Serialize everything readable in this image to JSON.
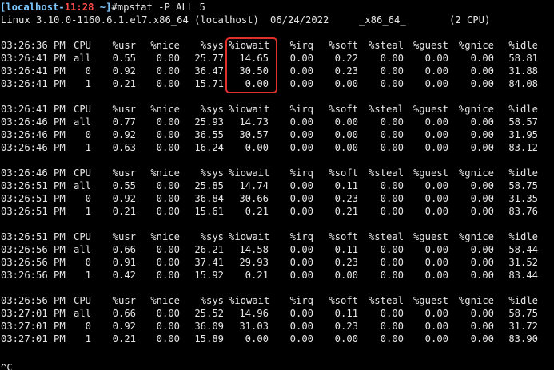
{
  "prompt": {
    "open_bracket": "[",
    "host": "localhost-",
    "time": "11:28",
    "path_sep": " ~]",
    "command": "#mpstat -P ALL 5"
  },
  "system_info": {
    "kernel": "Linux 3.10.0-1160.6.1.el7.x86_64 (localhost)",
    "date": "06/24/2022",
    "arch": "_x86_64_",
    "cpus": "(2 CPU)"
  },
  "header": {
    "cpu": "CPU",
    "usr": "%usr",
    "nice": "%nice",
    "sys": "%sys",
    "iowait": "%iowait",
    "irq": "%irq",
    "soft": "%soft",
    "steal": "%steal",
    "guest": "%guest",
    "gnice": "%gnice",
    "idle": "%idle"
  },
  "blocks": [
    {
      "header_time": "03:26:36 PM",
      "rows": [
        {
          "time": "03:26:41 PM",
          "cpu": "all",
          "usr": "0.55",
          "nice": "0.00",
          "sys": "25.77",
          "iowait": "14.65",
          "irq": "0.00",
          "soft": "0.22",
          "steal": "0.00",
          "guest": "0.00",
          "gnice": "0.00",
          "idle": "58.81"
        },
        {
          "time": "03:26:41 PM",
          "cpu": "0",
          "usr": "0.92",
          "nice": "0.00",
          "sys": "36.47",
          "iowait": "30.50",
          "irq": "0.00",
          "soft": "0.23",
          "steal": "0.00",
          "guest": "0.00",
          "gnice": "0.00",
          "idle": "31.88"
        },
        {
          "time": "03:26:41 PM",
          "cpu": "1",
          "usr": "0.21",
          "nice": "0.00",
          "sys": "15.71",
          "iowait": "0.00",
          "irq": "0.00",
          "soft": "0.00",
          "steal": "0.00",
          "guest": "0.00",
          "gnice": "0.00",
          "idle": "84.08"
        }
      ]
    },
    {
      "header_time": "03:26:41 PM",
      "rows": [
        {
          "time": "03:26:46 PM",
          "cpu": "all",
          "usr": "0.77",
          "nice": "0.00",
          "sys": "25.93",
          "iowait": "14.73",
          "irq": "0.00",
          "soft": "0.00",
          "steal": "0.00",
          "guest": "0.00",
          "gnice": "0.00",
          "idle": "58.57"
        },
        {
          "time": "03:26:46 PM",
          "cpu": "0",
          "usr": "0.92",
          "nice": "0.00",
          "sys": "36.55",
          "iowait": "30.57",
          "irq": "0.00",
          "soft": "0.00",
          "steal": "0.00",
          "guest": "0.00",
          "gnice": "0.00",
          "idle": "31.95"
        },
        {
          "time": "03:26:46 PM",
          "cpu": "1",
          "usr": "0.63",
          "nice": "0.00",
          "sys": "16.24",
          "iowait": "0.00",
          "irq": "0.00",
          "soft": "0.00",
          "steal": "0.00",
          "guest": "0.00",
          "gnice": "0.00",
          "idle": "83.12"
        }
      ]
    },
    {
      "header_time": "03:26:46 PM",
      "rows": [
        {
          "time": "03:26:51 PM",
          "cpu": "all",
          "usr": "0.55",
          "nice": "0.00",
          "sys": "25.85",
          "iowait": "14.74",
          "irq": "0.00",
          "soft": "0.11",
          "steal": "0.00",
          "guest": "0.00",
          "gnice": "0.00",
          "idle": "58.75"
        },
        {
          "time": "03:26:51 PM",
          "cpu": "0",
          "usr": "0.92",
          "nice": "0.00",
          "sys": "36.84",
          "iowait": "30.66",
          "irq": "0.00",
          "soft": "0.23",
          "steal": "0.00",
          "guest": "0.00",
          "gnice": "0.00",
          "idle": "31.35"
        },
        {
          "time": "03:26:51 PM",
          "cpu": "1",
          "usr": "0.21",
          "nice": "0.00",
          "sys": "15.61",
          "iowait": "0.21",
          "irq": "0.00",
          "soft": "0.21",
          "steal": "0.00",
          "guest": "0.00",
          "gnice": "0.00",
          "idle": "83.76"
        }
      ]
    },
    {
      "header_time": "03:26:51 PM",
      "rows": [
        {
          "time": "03:26:56 PM",
          "cpu": "all",
          "usr": "0.66",
          "nice": "0.00",
          "sys": "26.21",
          "iowait": "14.58",
          "irq": "0.00",
          "soft": "0.11",
          "steal": "0.00",
          "guest": "0.00",
          "gnice": "0.00",
          "idle": "58.44"
        },
        {
          "time": "03:26:56 PM",
          "cpu": "0",
          "usr": "0.91",
          "nice": "0.00",
          "sys": "37.41",
          "iowait": "29.93",
          "irq": "0.00",
          "soft": "0.23",
          "steal": "0.00",
          "guest": "0.00",
          "gnice": "0.00",
          "idle": "31.52"
        },
        {
          "time": "03:26:56 PM",
          "cpu": "1",
          "usr": "0.42",
          "nice": "0.00",
          "sys": "15.92",
          "iowait": "0.21",
          "irq": "0.00",
          "soft": "0.00",
          "steal": "0.00",
          "guest": "0.00",
          "gnice": "0.00",
          "idle": "83.44"
        }
      ]
    },
    {
      "header_time": "03:26:56 PM",
      "rows": [
        {
          "time": "03:27:01 PM",
          "cpu": "all",
          "usr": "0.66",
          "nice": "0.00",
          "sys": "25.52",
          "iowait": "14.96",
          "irq": "0.00",
          "soft": "0.11",
          "steal": "0.00",
          "guest": "0.00",
          "gnice": "0.00",
          "idle": "58.75"
        },
        {
          "time": "03:27:01 PM",
          "cpu": "0",
          "usr": "0.92",
          "nice": "0.00",
          "sys": "36.09",
          "iowait": "31.03",
          "irq": "0.00",
          "soft": "0.23",
          "steal": "0.00",
          "guest": "0.00",
          "gnice": "0.00",
          "idle": "31.72"
        },
        {
          "time": "03:27:01 PM",
          "cpu": "1",
          "usr": "0.21",
          "nice": "0.00",
          "sys": "15.89",
          "iowait": "0.00",
          "irq": "0.00",
          "soft": "0.00",
          "steal": "0.00",
          "guest": "0.00",
          "gnice": "0.00",
          "idle": "83.90"
        }
      ]
    }
  ],
  "trailing": "^C",
  "colors": {
    "background": "#000000",
    "text": "#e6e6e6",
    "prompt_host": "#7ec8ff",
    "prompt_time": "#ff4b4b",
    "annotation_box": "#e0302b"
  }
}
